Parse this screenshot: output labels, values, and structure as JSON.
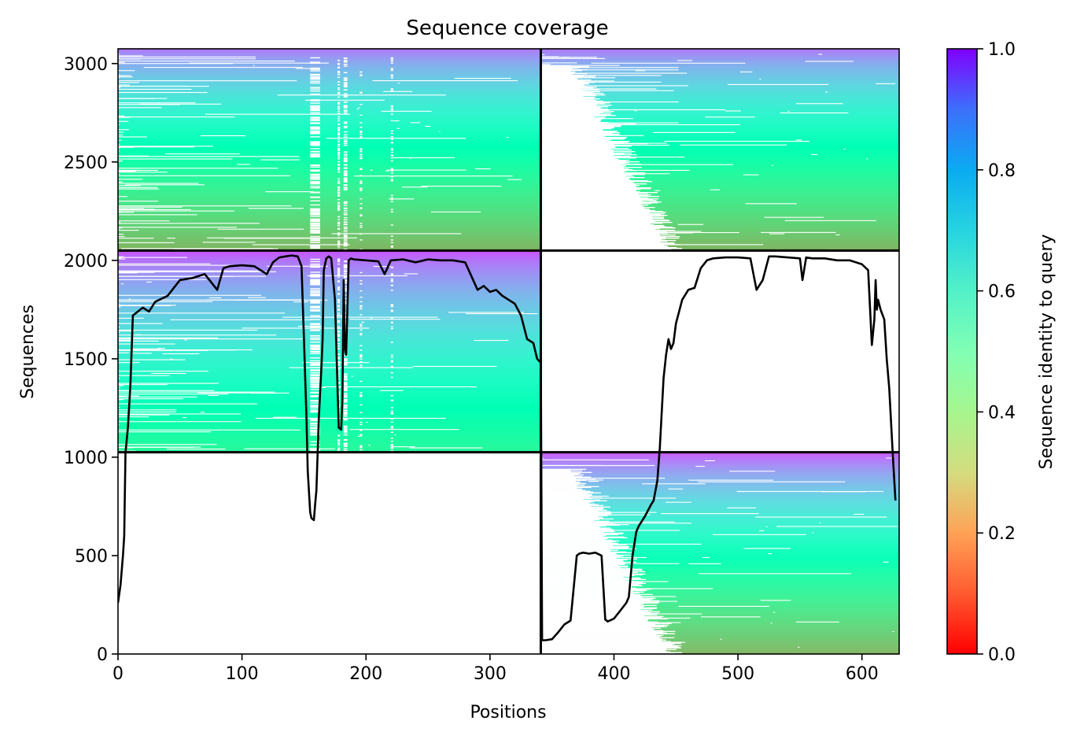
{
  "chart_data": {
    "type": "heatmap",
    "title": "Sequence coverage",
    "xlabel": "Positions",
    "ylabel": "Sequences",
    "colorbar_label": "Sequence identity to query",
    "xlim": [
      0,
      630
    ],
    "ylim": [
      0,
      3075
    ],
    "xticks": [
      0,
      100,
      200,
      300,
      400,
      500,
      600
    ],
    "yticks": [
      0,
      500,
      1000,
      1500,
      2000,
      2500,
      3000
    ],
    "colorbar_ticks": [
      0.0,
      0.2,
      0.4,
      0.6,
      0.8,
      1.0
    ],
    "colorbar_tick_labels": [
      "0.0",
      "0.2",
      "0.4",
      "0.6",
      "0.8",
      "1.0"
    ],
    "colormap": "rainbow_r",
    "chain_boundary_x": 341,
    "block_boundaries_y": [
      1025,
      2050
    ],
    "blocks": [
      {
        "name": "block-1",
        "x_range": [
          0,
          341
        ],
        "y_range": [
          1025,
          2050
        ],
        "identity_top": 0.9,
        "identity_bottom": 0.42
      },
      {
        "name": "block-2",
        "x_range": [
          0,
          341
        ],
        "y_range": [
          2050,
          3075
        ],
        "identity_top": 0.85,
        "identity_bottom": 0.25
      },
      {
        "name": "block-3",
        "x_range": [
          341,
          630
        ],
        "y_range": [
          2050,
          3075
        ],
        "identity_top": 0.85,
        "identity_bottom": 0.25
      },
      {
        "name": "block-4",
        "x_range": [
          341,
          630
        ],
        "y_range": [
          0,
          1025
        ],
        "identity_top": 0.9,
        "identity_bottom": 0.25
      }
    ],
    "coverage": {
      "x": [
        0,
        2,
        4,
        5,
        6,
        8,
        10,
        12,
        14,
        20,
        25,
        30,
        40,
        50,
        60,
        70,
        80,
        85,
        90,
        100,
        110,
        120,
        125,
        130,
        135,
        140,
        145,
        148,
        150,
        152,
        153,
        155,
        156,
        158,
        159,
        160,
        162,
        164,
        165,
        166,
        168,
        170,
        172,
        175,
        178,
        180,
        181,
        182,
        183,
        184,
        185,
        186,
        188,
        190,
        200,
        210,
        215,
        220,
        230,
        240,
        250,
        260,
        270,
        280,
        290,
        295,
        300,
        305,
        310,
        320,
        325,
        330,
        335,
        338,
        341,
        342,
        345,
        350,
        355,
        360,
        365,
        370,
        372,
        375,
        380,
        385,
        390,
        393,
        395,
        400,
        405,
        410,
        412,
        415,
        418,
        420,
        425,
        430,
        432,
        435,
        437,
        440,
        442,
        444,
        446,
        448,
        450,
        455,
        460,
        465,
        470,
        475,
        480,
        490,
        500,
        510,
        515,
        520,
        525,
        530,
        540,
        550,
        552,
        555,
        560,
        570,
        580,
        590,
        600,
        605,
        608,
        610,
        611,
        612,
        613,
        615,
        618,
        620,
        622,
        625,
        627,
        628,
        630
      ],
      "y": [
        260,
        350,
        500,
        600,
        1020,
        1150,
        1370,
        1720,
        1730,
        1760,
        1740,
        1790,
        1820,
        1900,
        1910,
        1930,
        1850,
        1960,
        1970,
        1975,
        1970,
        1930,
        1990,
        2015,
        2020,
        2025,
        2020,
        1970,
        1600,
        1200,
        930,
        720,
        690,
        680,
        760,
        830,
        1200,
        1450,
        1600,
        1950,
        2010,
        2020,
        2010,
        1800,
        1150,
        1140,
        1300,
        1900,
        1550,
        1520,
        1750,
        2000,
        2010,
        2005,
        2000,
        1995,
        1930,
        2000,
        2005,
        1990,
        2005,
        2000,
        2000,
        1990,
        1850,
        1870,
        1840,
        1850,
        1820,
        1780,
        1720,
        1600,
        1580,
        1500,
        1480,
        70,
        70,
        75,
        110,
        150,
        170,
        500,
        510,
        515,
        510,
        515,
        500,
        175,
        165,
        180,
        220,
        260,
        290,
        500,
        620,
        650,
        700,
        760,
        780,
        880,
        1050,
        1400,
        1520,
        1600,
        1550,
        1580,
        1680,
        1800,
        1850,
        1860,
        1960,
        2000,
        2010,
        2015,
        2015,
        2010,
        1850,
        1900,
        2020,
        2020,
        2015,
        2010,
        1900,
        2015,
        2010,
        2010,
        2000,
        2000,
        1980,
        1950,
        1570,
        1700,
        1900,
        1750,
        1800,
        1750,
        1700,
        1500,
        1350,
        1000,
        780
      ]
    }
  }
}
